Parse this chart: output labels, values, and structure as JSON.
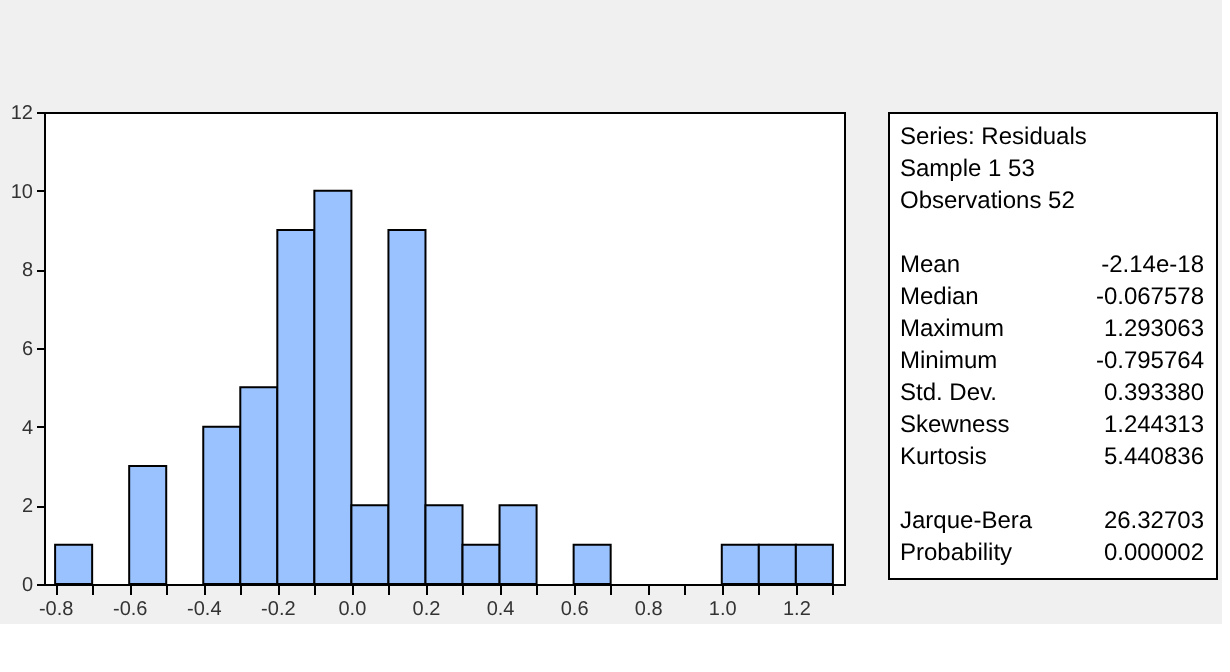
{
  "chart_data": {
    "type": "histogram",
    "bins": [
      -0.8,
      -0.7,
      -0.6,
      -0.5,
      -0.4,
      -0.3,
      -0.2,
      -0.1,
      0.0,
      0.1,
      0.2,
      0.3,
      0.4,
      0.5,
      0.6,
      0.7,
      0.8,
      0.9,
      1.0,
      1.1,
      1.2,
      1.3
    ],
    "values": [
      1,
      0,
      3,
      0,
      4,
      5,
      9,
      10,
      2,
      9,
      2,
      1,
      2,
      0,
      1,
      0,
      0,
      0,
      1,
      1,
      1
    ],
    "color": "#99c2ff",
    "xlim": [
      -0.83,
      1.33
    ],
    "ylim": [
      0,
      12
    ],
    "yticks": [
      0,
      2,
      4,
      6,
      8,
      10,
      12
    ],
    "xticks": [
      {
        "value": -0.8,
        "label": "-0.8"
      },
      {
        "value": -0.7,
        "label": null
      },
      {
        "value": -0.6,
        "label": "-0.6"
      },
      {
        "value": -0.5,
        "label": null
      },
      {
        "value": -0.4,
        "label": "-0.4"
      },
      {
        "value": -0.3,
        "label": null
      },
      {
        "value": -0.2,
        "label": "-0.2"
      },
      {
        "value": -0.1,
        "label": null
      },
      {
        "value": 0.0,
        "label": "0.0"
      },
      {
        "value": 0.1,
        "label": null
      },
      {
        "value": 0.2,
        "label": "0.2"
      },
      {
        "value": 0.3,
        "label": null
      },
      {
        "value": 0.4,
        "label": "0.4"
      },
      {
        "value": 0.5,
        "label": null
      },
      {
        "value": 0.6,
        "label": "0.6"
      },
      {
        "value": 0.7,
        "label": null
      },
      {
        "value": 0.8,
        "label": "0.8"
      },
      {
        "value": 0.9,
        "label": null
      },
      {
        "value": 1.0,
        "label": "1.0"
      },
      {
        "value": 1.1,
        "label": null
      },
      {
        "value": 1.2,
        "label": "1.2"
      },
      {
        "value": 1.3,
        "label": null
      }
    ],
    "grid": false,
    "annotations": [
      "Series: Residuals",
      "Sample 1 53",
      "Observations 52",
      "Mean",
      "-2.14e-18",
      "Median",
      "-0.067578",
      "Maximum",
      "1.293063",
      "Minimum",
      "-0.795764",
      "Std. Dev.",
      "0.393380",
      "Skewness",
      "1.244313",
      "Kurtosis",
      "5.440836",
      "Jarque-Bera",
      "26.32703",
      "Probability",
      "0.000002"
    ]
  }
}
